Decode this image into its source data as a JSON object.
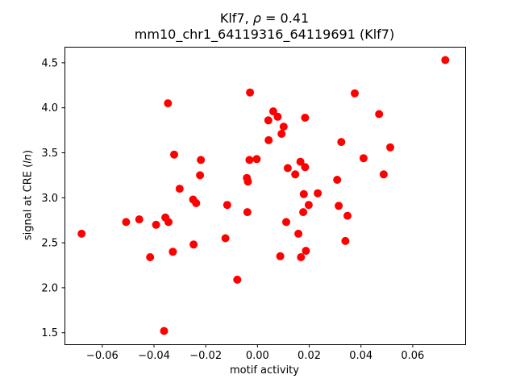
{
  "figure": {
    "title_line1": {
      "prefix": "Klf7, ",
      "rho": "ρ",
      "suffix": " = 0.41"
    },
    "title_line2": "mm10_chr1_64119316_64119691 (Klf7)",
    "background": "#ffffff",
    "text_color": "#000000"
  },
  "chart_data": {
    "type": "scatter",
    "title": "Klf7, ρ = 0.41",
    "subtitle": "mm10_chr1_64119316_64119691 (Klf7)",
    "xlabel": "motif activity",
    "ylabel": "signal at CRE (ln)",
    "ylabel_parts": {
      "prefix": "signal at CRE (",
      "italic": "ln",
      "suffix": ")"
    },
    "xlim": [
      -0.0746,
      0.0803
    ],
    "ylim": [
      1.372,
      4.678
    ],
    "x_ticks": [
      -0.06,
      -0.04,
      -0.02,
      0.0,
      0.02,
      0.04,
      0.06
    ],
    "x_tick_labels": [
      "−0.06",
      "−0.04",
      "−0.02",
      "0.00",
      "0.02",
      "0.04",
      "0.06"
    ],
    "y_ticks": [
      1.5,
      2.0,
      2.5,
      3.0,
      3.5,
      4.0,
      4.5
    ],
    "y_tick_labels": [
      "1.5",
      "2.0",
      "2.5",
      "3.0",
      "3.5",
      "4.0",
      "4.5"
    ],
    "grid": false,
    "legend": null,
    "point_color": "#ff0000",
    "marker_diameter_px": 10,
    "points": [
      [
        -0.068,
        2.6
      ],
      [
        -0.0508,
        2.73
      ],
      [
        -0.0457,
        2.76
      ],
      [
        -0.0415,
        2.34
      ],
      [
        -0.0392,
        2.7
      ],
      [
        -0.0361,
        1.52
      ],
      [
        -0.0356,
        2.78
      ],
      [
        -0.0346,
        4.05
      ],
      [
        -0.0344,
        2.73
      ],
      [
        -0.0327,
        2.4
      ],
      [
        -0.0322,
        3.48
      ],
      [
        -0.0301,
        3.1
      ],
      [
        -0.0249,
        2.98
      ],
      [
        -0.0247,
        2.48
      ],
      [
        -0.0237,
        2.94
      ],
      [
        -0.0222,
        3.25
      ],
      [
        -0.0219,
        3.42
      ],
      [
        -0.0124,
        2.55
      ],
      [
        -0.0117,
        2.92
      ],
      [
        -0.0078,
        2.09
      ],
      [
        -0.0041,
        3.22
      ],
      [
        -0.0039,
        2.84
      ],
      [
        -0.0037,
        3.18
      ],
      [
        -0.0031,
        3.42
      ],
      [
        -0.0029,
        4.17
      ],
      [
        -0.0003,
        3.43
      ],
      [
        0.0042,
        3.86
      ],
      [
        0.0043,
        3.64
      ],
      [
        0.0061,
        3.96
      ],
      [
        0.0078,
        3.9
      ],
      [
        0.0088,
        2.35
      ],
      [
        0.0093,
        3.71
      ],
      [
        0.0101,
        3.79
      ],
      [
        0.0111,
        2.73
      ],
      [
        0.0117,
        3.33
      ],
      [
        0.0146,
        3.26
      ],
      [
        0.0158,
        2.6
      ],
      [
        0.0166,
        3.4
      ],
      [
        0.0168,
        2.34
      ],
      [
        0.0177,
        2.84
      ],
      [
        0.0179,
        3.04
      ],
      [
        0.0184,
        3.34
      ],
      [
        0.0184,
        3.89
      ],
      [
        0.0187,
        2.41
      ],
      [
        0.0198,
        2.92
      ],
      [
        0.0233,
        3.05
      ],
      [
        0.0308,
        3.2
      ],
      [
        0.0314,
        2.91
      ],
      [
        0.0324,
        3.62
      ],
      [
        0.034,
        2.52
      ],
      [
        0.0348,
        2.8
      ],
      [
        0.0376,
        4.16
      ],
      [
        0.041,
        3.44
      ],
      [
        0.047,
        3.93
      ],
      [
        0.0488,
        3.26
      ],
      [
        0.0513,
        3.56
      ],
      [
        0.0726,
        4.53
      ]
    ]
  }
}
